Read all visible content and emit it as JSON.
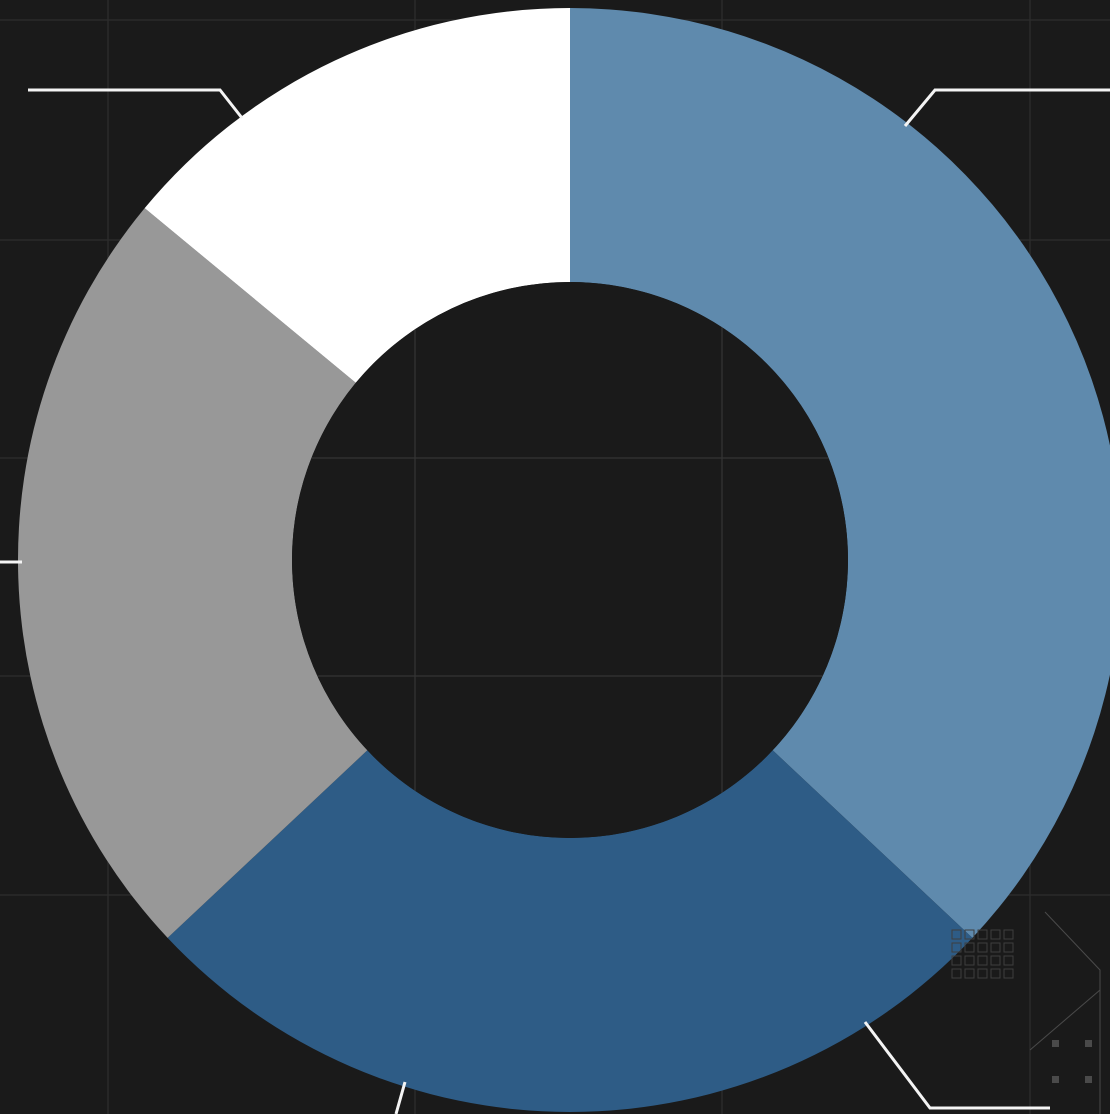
{
  "chart_data": {
    "type": "pie",
    "variant": "donut",
    "title": "",
    "categories": [
      "",
      "",
      "",
      ""
    ],
    "values": [
      37,
      26,
      23,
      14
    ],
    "colors": [
      "#5f8aad",
      "#2e5c86",
      "#989898",
      "#ffffff"
    ],
    "start_angle_deg": 0,
    "direction": "clockwise",
    "labels_visible": false,
    "legend": "none",
    "grid": true
  },
  "colors": {
    "background": "#1a1a1a",
    "grid": "#2e2e2e",
    "leader_lines": "#f4f4f4",
    "hole": "#1a1a1a"
  }
}
